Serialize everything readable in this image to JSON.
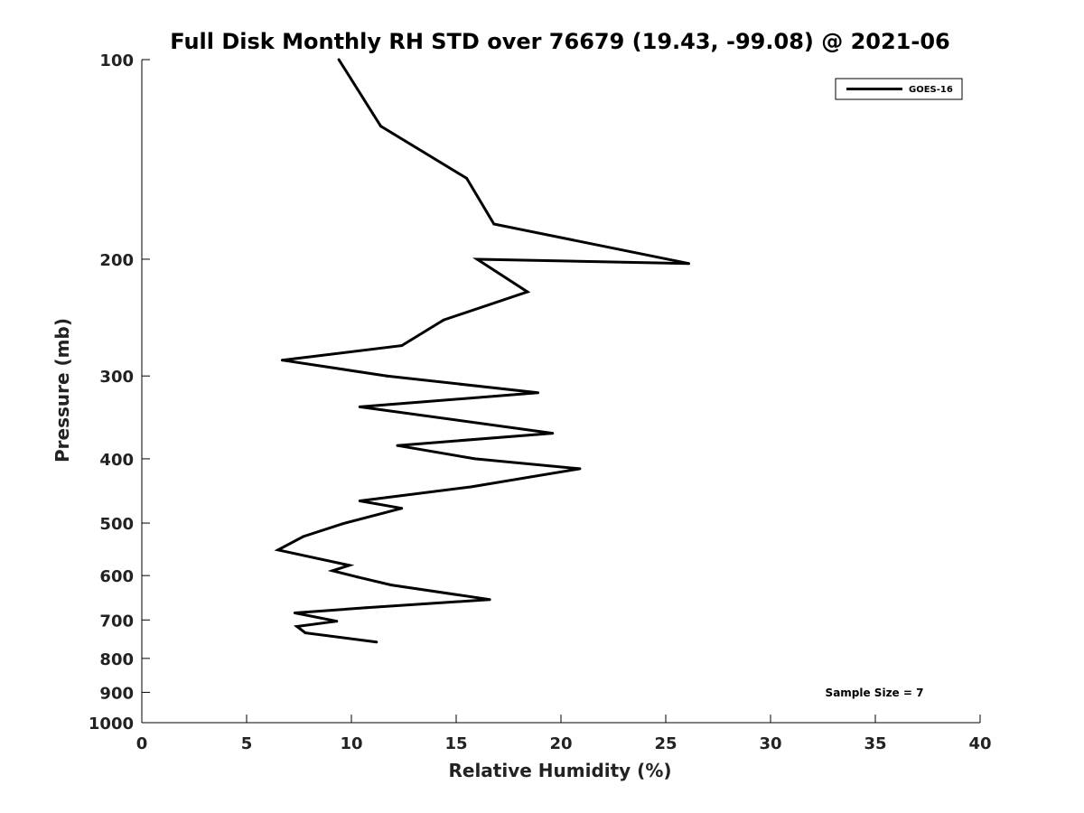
{
  "chart_data": {
    "type": "line",
    "title": "Full Disk Monthly RH STD over 76679 (19.43, -99.08) @ 2021-06",
    "xlabel": "Relative Humidity (%)",
    "ylabel": "Pressure (mb)",
    "xlim": [
      0,
      40
    ],
    "ylim": [
      1000,
      100
    ],
    "y_scale": "log",
    "y_inverted": true,
    "x_ticks": [
      0,
      5,
      10,
      15,
      20,
      25,
      30,
      35,
      40
    ],
    "y_ticks": [
      100,
      200,
      300,
      400,
      500,
      600,
      700,
      800,
      900,
      1000
    ],
    "grid": false,
    "legend_position": "top-right",
    "annotation": "Sample Size = 7",
    "series": [
      {
        "name": "GOES-16",
        "color": "#000000",
        "points": [
          {
            "x": 9.4,
            "p": 100
          },
          {
            "x": 11.4,
            "p": 126
          },
          {
            "x": 15.5,
            "p": 151
          },
          {
            "x": 16.8,
            "p": 177
          },
          {
            "x": 26.1,
            "p": 203
          },
          {
            "x": 16.0,
            "p": 200
          },
          {
            "x": 18.4,
            "p": 224
          },
          {
            "x": 14.4,
            "p": 247
          },
          {
            "x": 12.4,
            "p": 270
          },
          {
            "x": 6.7,
            "p": 284
          },
          {
            "x": 11.7,
            "p": 300
          },
          {
            "x": 18.9,
            "p": 318
          },
          {
            "x": 10.4,
            "p": 334
          },
          {
            "x": 19.6,
            "p": 366
          },
          {
            "x": 12.2,
            "p": 382
          },
          {
            "x": 15.9,
            "p": 400
          },
          {
            "x": 20.9,
            "p": 414
          },
          {
            "x": 15.7,
            "p": 441
          },
          {
            "x": 10.4,
            "p": 463
          },
          {
            "x": 12.4,
            "p": 475
          },
          {
            "x": 9.6,
            "p": 501
          },
          {
            "x": 7.7,
            "p": 524
          },
          {
            "x": 6.5,
            "p": 549
          },
          {
            "x": 9.9,
            "p": 579
          },
          {
            "x": 9.1,
            "p": 590
          },
          {
            "x": 10.3,
            "p": 603
          },
          {
            "x": 11.9,
            "p": 620
          },
          {
            "x": 16.6,
            "p": 652
          },
          {
            "x": 10.7,
            "p": 671
          },
          {
            "x": 7.3,
            "p": 683
          },
          {
            "x": 9.3,
            "p": 703
          },
          {
            "x": 7.4,
            "p": 716
          },
          {
            "x": 7.8,
            "p": 732
          },
          {
            "x": 11.2,
            "p": 756
          }
        ]
      }
    ]
  }
}
